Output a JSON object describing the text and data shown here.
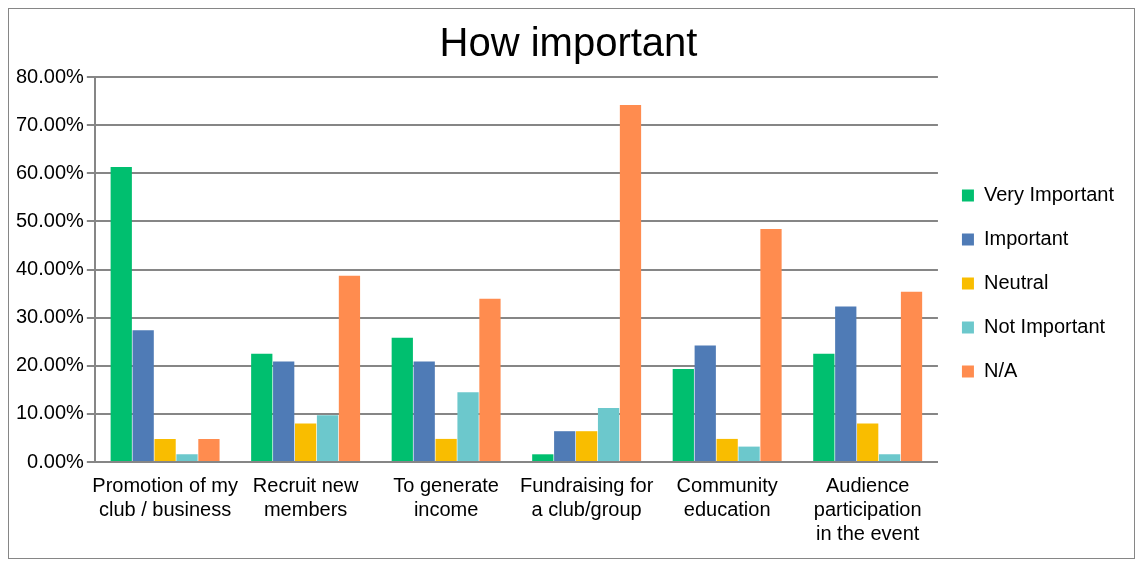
{
  "chart_data": {
    "type": "bar",
    "title": "How important",
    "categories": [
      "Promotion of my club / business",
      "Recruit new members",
      "To generate income",
      "Fundraising for a club/group",
      "Community education",
      "Audience participation in the event"
    ],
    "series": [
      {
        "name": "Very Important",
        "color": "#00bf6f",
        "values": [
          61.3,
          22.5,
          25.8,
          1.6,
          19.3,
          22.5
        ]
      },
      {
        "name": "Important",
        "color": "#4f7bb6",
        "values": [
          27.4,
          20.9,
          20.9,
          6.4,
          24.2,
          32.3
        ]
      },
      {
        "name": "Neutral",
        "color": "#f9bd00",
        "values": [
          4.8,
          8.0,
          4.8,
          6.4,
          4.8,
          8.0
        ]
      },
      {
        "name": "Not Important",
        "color": "#6cc8cc",
        "values": [
          1.6,
          9.7,
          14.5,
          11.2,
          3.2,
          1.6
        ]
      },
      {
        "name": "N/A",
        "color": "#ff8c4f",
        "values": [
          4.8,
          38.7,
          33.9,
          74.2,
          48.4,
          35.4
        ]
      }
    ],
    "ylim": [
      0,
      80
    ],
    "yticks": [
      {
        "value": 0,
        "label": "0.00%"
      },
      {
        "value": 10,
        "label": "10.00%"
      },
      {
        "value": 20,
        "label": "20.00%"
      },
      {
        "value": 30,
        "label": "30.00%"
      },
      {
        "value": 40,
        "label": "40.00%"
      },
      {
        "value": 50,
        "label": "50.00%"
      },
      {
        "value": 60,
        "label": "60.00%"
      },
      {
        "value": 70,
        "label": "70.00%"
      },
      {
        "value": 80,
        "label": "80.00%"
      }
    ],
    "grid": "y",
    "legend": "right"
  }
}
